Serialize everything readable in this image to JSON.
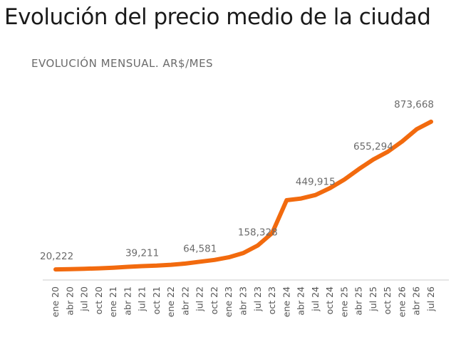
{
  "page": {
    "title": "Evolución del precio medio de la ciudad",
    "subtitle": "EVOLUCIÓN MENSUAL. AR$/MES"
  },
  "colors": {
    "line": "#f26a0e",
    "text": "#1a1a1a",
    "muted": "#6b6b6b",
    "axis": "#cccccc"
  },
  "chart_data": {
    "type": "line",
    "title": "Evolución del precio medio de la ciudad",
    "subtitle": "EVOLUCIÓN MENSUAL. AR$/MES",
    "categories": [
      "ene 20",
      "abr 20",
      "jul 20",
      "oct 20",
      "ene 21",
      "abr 21",
      "jul 21",
      "oct 21",
      "ene 22",
      "abr 22",
      "jul 22",
      "oct 22",
      "ene 23",
      "abr 23",
      "jul 23",
      "oct 23",
      "ene 24",
      "abr 24",
      "jul 24",
      "oct 24",
      "ene 25",
      "abr 25",
      "jul 25",
      "oct 25",
      "ene 26",
      "abr 26",
      "jul 26"
    ],
    "x": [
      0,
      3,
      6,
      9,
      12,
      15,
      18,
      21,
      24,
      27,
      30,
      33,
      36,
      39,
      42,
      45,
      48,
      51,
      54,
      57,
      60,
      63,
      66,
      69,
      72,
      75,
      78
    ],
    "series": [
      {
        "values": [
          20222,
          21500,
          23800,
          26500,
          30000,
          35000,
          39211,
          42000,
          47000,
          54000,
          64581,
          75000,
          90000,
          115000,
          158328,
          230000,
          420000,
          430000,
          449915,
          490000,
          540000,
          600000,
          655294,
          700000,
          760000,
          830000,
          873668
        ]
      }
    ],
    "data_labels": [
      {
        "index": 0,
        "value": 20222,
        "text": "20,222"
      },
      {
        "index": 6,
        "value": 39211,
        "text": "39,211"
      },
      {
        "index": 10,
        "value": 64581,
        "text": "64,581"
      },
      {
        "index": 14,
        "value": 158328,
        "text": "158,328"
      },
      {
        "index": 18,
        "value": 449915,
        "text": "449,915"
      },
      {
        "index": 22,
        "value": 655294,
        "text": "655,294"
      },
      {
        "index": 26,
        "value": 873668,
        "text": "873,668"
      }
    ],
    "ylim": [
      0,
      980000
    ],
    "grid": false,
    "legend": "none"
  }
}
